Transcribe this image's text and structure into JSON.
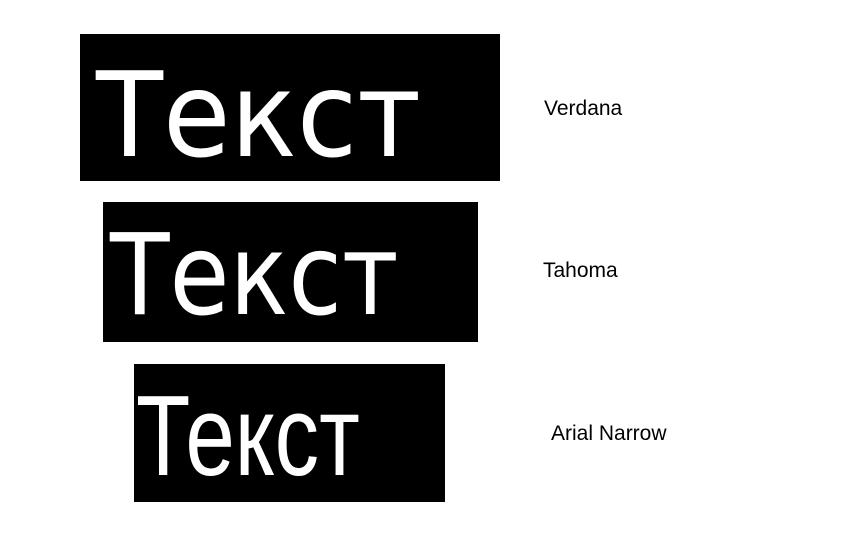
{
  "samples": [
    {
      "sample_text": "Текст",
      "font_label": "Verdana"
    },
    {
      "sample_text": "Текст",
      "font_label": "Tahoma"
    },
    {
      "sample_text": "Текст",
      "font_label": "Arial Narrow"
    }
  ],
  "colors": {
    "box_background": "#000000",
    "sample_text": "#ffffff",
    "label_text": "#000000",
    "page_background": "#ffffff"
  }
}
